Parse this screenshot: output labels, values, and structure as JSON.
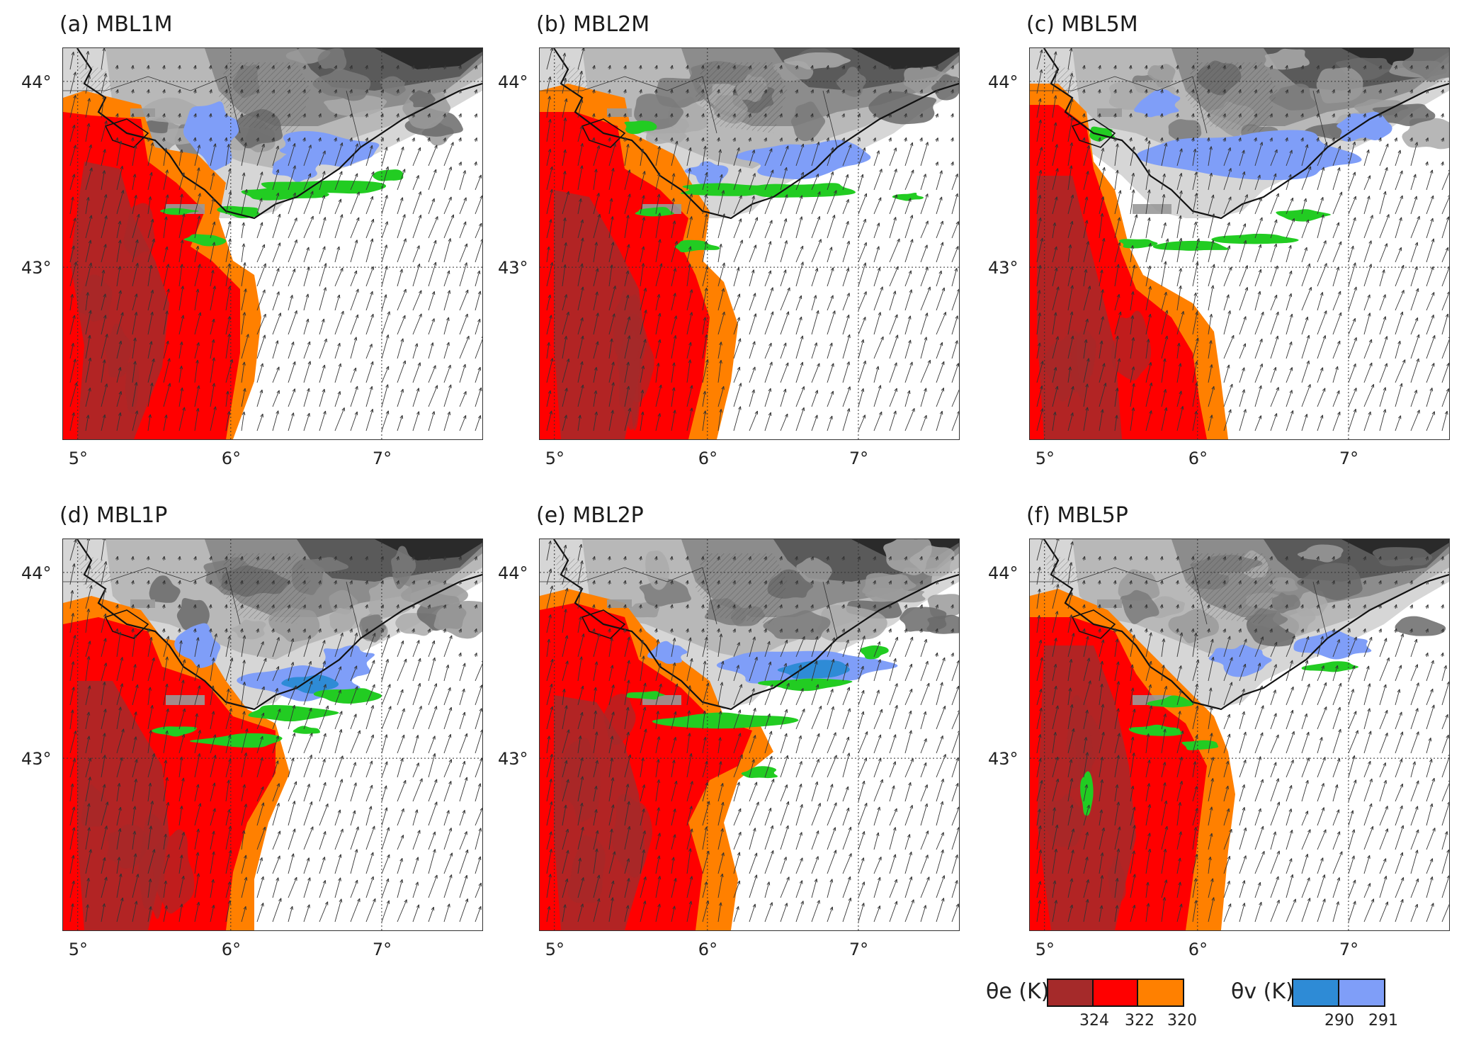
{
  "panels": [
    {
      "id": "a",
      "title": "(a) MBL1M",
      "variant": 0
    },
    {
      "id": "b",
      "title": "(b) MBL2M",
      "variant": 1
    },
    {
      "id": "c",
      "title": "(c) MBL5M",
      "variant": 2
    },
    {
      "id": "d",
      "title": "(d) MBL1P",
      "variant": 3
    },
    {
      "id": "e",
      "title": "(e) MBL2P",
      "variant": 4
    },
    {
      "id": "f",
      "title": "(f) MBL5P",
      "variant": 5
    }
  ],
  "lat_labels": [
    "44°",
    "43°"
  ],
  "lon_labels": [
    "5°",
    "6°",
    "7°"
  ],
  "legend_theta_e": {
    "label": "θe (K)",
    "colors": [
      "#a52a2a",
      "#ff0000",
      "#ff8000"
    ],
    "ticks": [
      "324",
      "322",
      "320"
    ]
  },
  "legend_theta_v": {
    "label": "θv (K)",
    "colors": [
      "#2e8bd6",
      "#7f9ef8"
    ],
    "ticks": [
      "290",
      "291"
    ]
  },
  "colors": {
    "dark_red": "#a52a2a",
    "red": "#ff0000",
    "orange": "#ff8000",
    "green": "#22cc22",
    "blue_dark": "#2e8bd6",
    "blue_light": "#7f9ef8"
  }
}
